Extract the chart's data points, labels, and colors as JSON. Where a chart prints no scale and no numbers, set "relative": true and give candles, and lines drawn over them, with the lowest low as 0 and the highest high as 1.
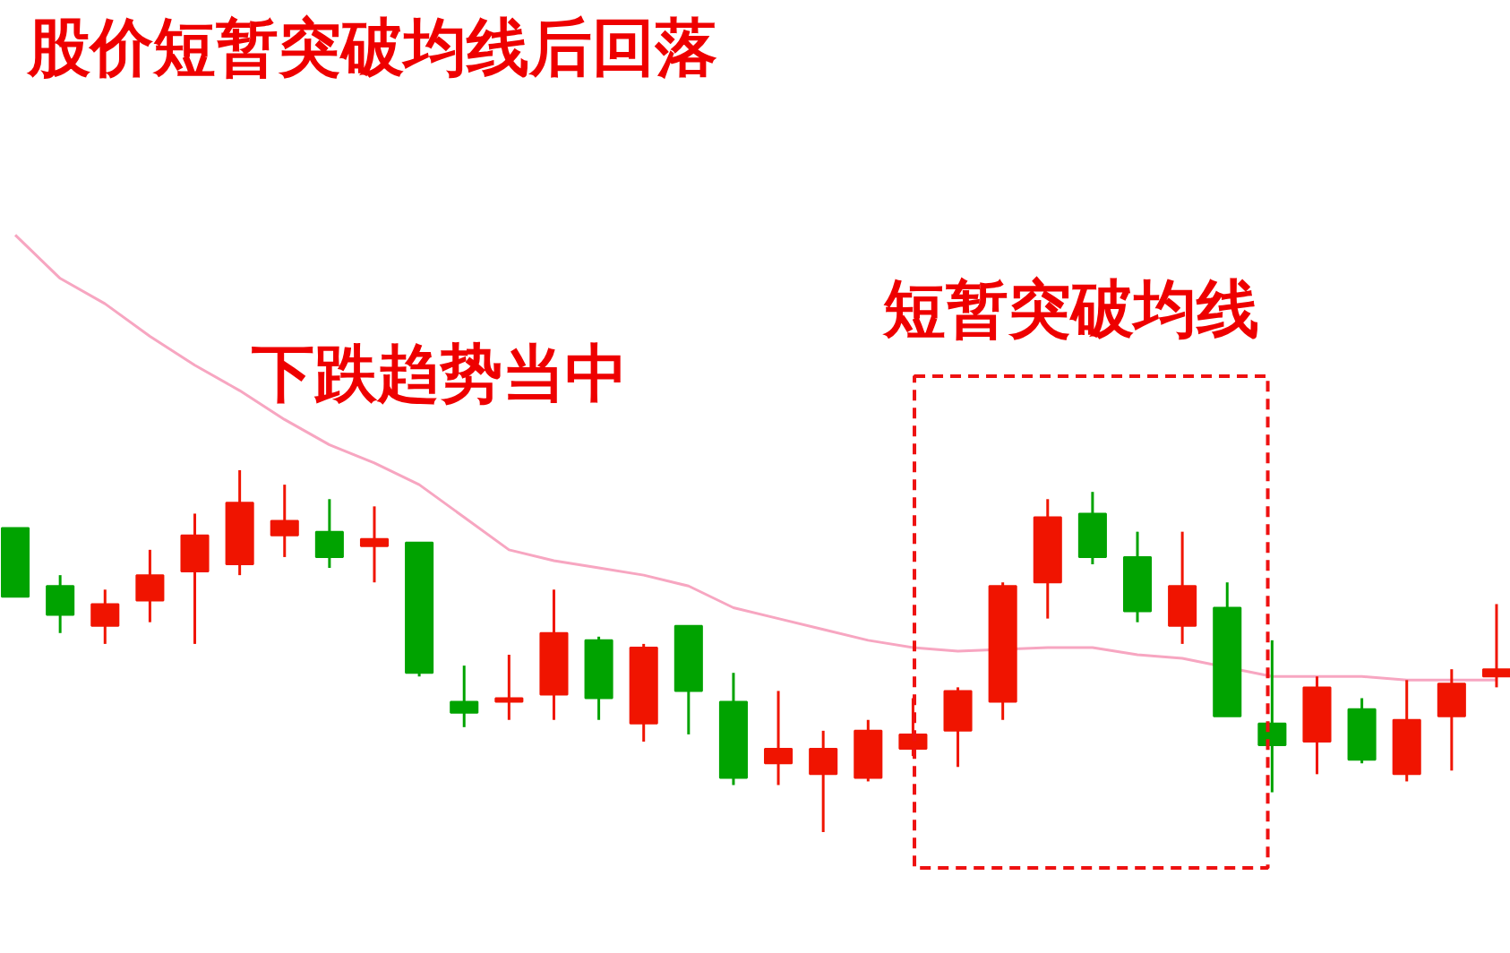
{
  "chart_data": {
    "type": "candlestick",
    "title": "股价短暂突破均线后回落",
    "annotations": [
      "下跌趋势当中",
      "短暂突破均线"
    ],
    "categories": [
      null,
      null,
      null,
      null,
      null,
      null,
      null,
      null,
      null,
      null,
      null,
      null,
      null,
      null,
      null,
      null,
      null,
      null,
      null,
      null,
      null,
      null,
      null,
      null,
      null,
      null,
      null,
      null,
      null,
      null,
      null,
      null,
      null,
      null
    ],
    "ohlc": [
      [
        0.84,
        0.84,
        0.65,
        0.65
      ],
      [
        0.68,
        0.71,
        0.55,
        0.6
      ],
      [
        0.57,
        0.67,
        0.52,
        0.63
      ],
      [
        0.64,
        0.78,
        0.58,
        0.71
      ],
      [
        0.72,
        0.88,
        0.52,
        0.82
      ],
      [
        0.74,
        1.0,
        0.71,
        0.91
      ],
      [
        0.82,
        0.96,
        0.76,
        0.86
      ],
      [
        0.83,
        0.92,
        0.73,
        0.76
      ],
      [
        0.79,
        0.9,
        0.69,
        0.81
      ],
      [
        0.8,
        0.8,
        0.43,
        0.44
      ],
      [
        0.36,
        0.46,
        0.29,
        0.33
      ],
      [
        0.36,
        0.49,
        0.31,
        0.37
      ],
      [
        0.38,
        0.67,
        0.31,
        0.55
      ],
      [
        0.53,
        0.54,
        0.31,
        0.37
      ],
      [
        0.3,
        0.52,
        0.25,
        0.51
      ],
      [
        0.57,
        0.57,
        0.27,
        0.39
      ],
      [
        0.36,
        0.44,
        0.13,
        0.15
      ],
      [
        0.19,
        0.39,
        0.13,
        0.23
      ],
      [
        0.16,
        0.28,
        0.0,
        0.23
      ],
      [
        0.15,
        0.31,
        0.14,
        0.28
      ],
      [
        0.23,
        0.37,
        0.21,
        0.27
      ],
      [
        0.28,
        0.4,
        0.18,
        0.39
      ],
      [
        0.36,
        0.69,
        0.31,
        0.68
      ],
      [
        0.69,
        0.92,
        0.59,
        0.87
      ],
      [
        0.88,
        0.94,
        0.74,
        0.76
      ],
      [
        0.76,
        0.83,
        0.58,
        0.61
      ],
      [
        0.57,
        0.83,
        0.52,
        0.68
      ],
      [
        0.62,
        0.69,
        0.32,
        0.32
      ],
      [
        0.3,
        0.53,
        0.11,
        0.24
      ],
      [
        0.25,
        0.43,
        0.16,
        0.4
      ],
      [
        0.34,
        0.37,
        0.19,
        0.2
      ],
      [
        0.16,
        0.42,
        0.14,
        0.31
      ],
      [
        0.32,
        0.45,
        0.17,
        0.41
      ],
      [
        0.43,
        0.63,
        0.4,
        0.45
      ]
    ],
    "colors": [
      "#00a300",
      "#00a300",
      "#f01400",
      "#f01400",
      "#f01400",
      "#f01400",
      "#f01400",
      "#00a300",
      "#f01400",
      "#00a300",
      "#00a300",
      "#f01400",
      "#f01400",
      "#00a300",
      "#f01400",
      "#00a300",
      "#00a300",
      "#f01400",
      "#f01400",
      "#f01400",
      "#f01400",
      "#f01400",
      "#f01400",
      "#f01400",
      "#00a300",
      "#00a300",
      "#f01400",
      "#00a300",
      "#00a300",
      "#f01400",
      "#00a300",
      "#f01400",
      "#f01400",
      "#f01400"
    ],
    "series": [
      {
        "type": "line",
        "color": "#f7a6c1",
        "values": [
          1.65,
          1.53,
          1.46,
          1.37,
          1.29,
          1.22,
          1.14,
          1.07,
          1.02,
          0.96,
          0.87,
          0.78,
          0.75,
          0.73,
          0.71,
          0.68,
          0.62,
          0.59,
          0.56,
          0.53,
          0.51,
          0.5,
          null,
          0.51,
          0.51,
          0.49,
          0.48,
          null,
          0.43,
          0.43,
          0.43,
          0.42,
          0.42,
          0.42
        ]
      }
    ],
    "relative": true,
    "tick_labels": false
  }
}
